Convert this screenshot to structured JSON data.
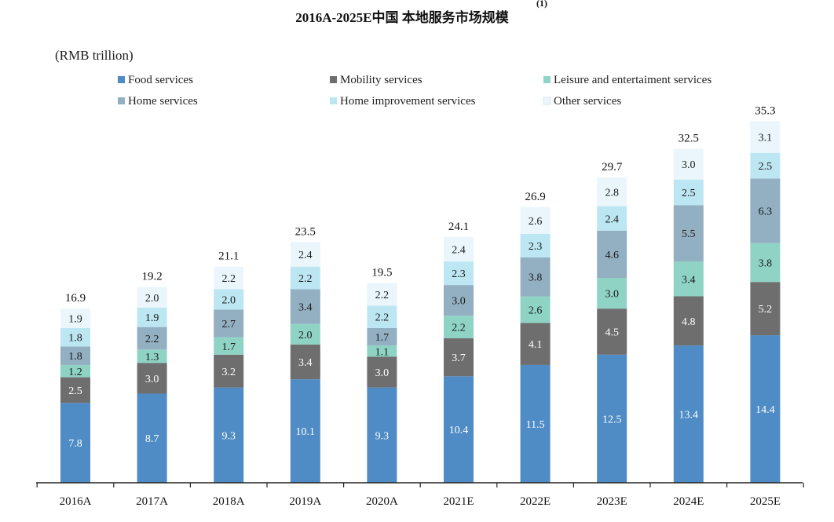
{
  "chart_data": {
    "type": "bar",
    "stacked": true,
    "title": "2016A-2025E中国 本地服务市场规模",
    "title_superscript": "(1)",
    "unit_label": "(RMB trillion)",
    "categories": [
      "2016A",
      "2017A",
      "2018A",
      "2019A",
      "2020A",
      "2021E",
      "2022E",
      "2023E",
      "2024E",
      "2025E"
    ],
    "totals": [
      "16.9",
      "19.2",
      "21.1",
      "23.5",
      "19.5",
      "24.1",
      "26.9",
      "29.7",
      "32.5",
      "35.3"
    ],
    "series": [
      {
        "name": "Food services",
        "color": "#4F8BC4",
        "label_color": "#ffffff",
        "values": [
          7.8,
          8.7,
          9.3,
          10.1,
          9.3,
          10.4,
          11.5,
          12.5,
          13.4,
          14.4
        ]
      },
      {
        "name": "Mobility services",
        "color": "#6E6E6E",
        "label_color": "#ffffff",
        "values": [
          2.5,
          3.0,
          3.2,
          3.4,
          3.0,
          3.7,
          4.1,
          4.5,
          4.8,
          5.2
        ]
      },
      {
        "name": "Leisure and entertaiment services",
        "color": "#8FD3C5",
        "label_color": "#1a1a1a",
        "values": [
          1.2,
          1.3,
          1.7,
          2.0,
          1.1,
          2.2,
          2.6,
          3.0,
          3.4,
          3.8
        ]
      },
      {
        "name": "Home services",
        "color": "#93AFC2",
        "label_color": "#1a1a1a",
        "values": [
          1.8,
          2.2,
          2.7,
          3.4,
          1.7,
          3.0,
          3.8,
          4.6,
          5.5,
          6.3
        ]
      },
      {
        "name": "Home improvement services",
        "color": "#BDE6F3",
        "label_color": "#1a1a1a",
        "values": [
          1.8,
          1.9,
          2.0,
          2.2,
          2.2,
          2.3,
          2.3,
          2.4,
          2.5,
          2.5
        ]
      },
      {
        "name": "Other services",
        "color": "#EAF6FB",
        "label_color": "#1a1a1a",
        "values": [
          1.9,
          2.0,
          2.2,
          2.4,
          2.2,
          2.4,
          2.6,
          2.8,
          3.0,
          3.1
        ]
      }
    ],
    "ylim": [
      0,
      36
    ],
    "grid": false,
    "legend_position": "top"
  }
}
